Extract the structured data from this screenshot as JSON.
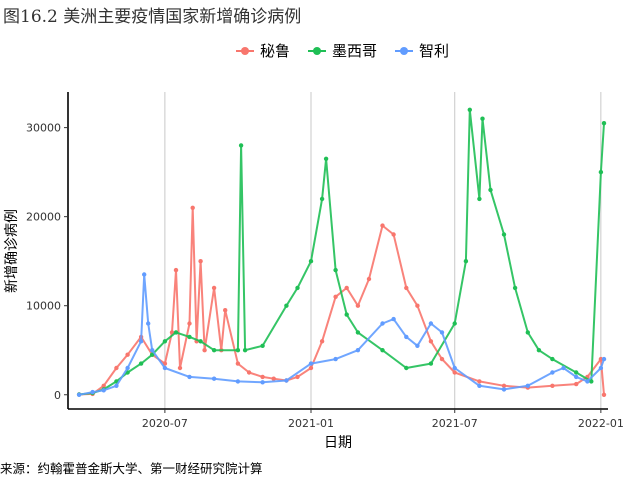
{
  "figure": {
    "caption": "图16.2 美洲主要疫情国家新增确诊病例",
    "source": "来源：约翰霍普金斯大学、第一财经研究院计算"
  },
  "chart_data": {
    "type": "line",
    "xlabel": "日期",
    "ylabel": "新增确诊病例",
    "x_ticks": [
      "2020-07",
      "2021-01",
      "2021-07",
      "2022-01"
    ],
    "y_ticks": [
      0,
      10000,
      20000,
      30000
    ],
    "xlim": [
      "2020-03-01",
      "2022-01-10"
    ],
    "ylim": [
      -1600,
      34000
    ],
    "grid": "vertical major",
    "legend_position": "top",
    "series": [
      {
        "name": "秘鲁",
        "color": "#F8766D",
        "points": [
          [
            "2020-03-15",
            30
          ],
          [
            "2020-04-01",
            100
          ],
          [
            "2020-04-15",
            1000
          ],
          [
            "2020-05-01",
            3000
          ],
          [
            "2020-05-15",
            4500
          ],
          [
            "2020-06-01",
            6500
          ],
          [
            "2020-06-15",
            4500
          ],
          [
            "2020-07-01",
            3500
          ],
          [
            "2020-07-10",
            7000
          ],
          [
            "2020-07-15",
            14000
          ],
          [
            "2020-07-20",
            3000
          ],
          [
            "2020-08-01",
            8000
          ],
          [
            "2020-08-05",
            21000
          ],
          [
            "2020-08-10",
            6000
          ],
          [
            "2020-08-15",
            15000
          ],
          [
            "2020-08-20",
            5000
          ],
          [
            "2020-09-01",
            12000
          ],
          [
            "2020-09-10",
            5000
          ],
          [
            "2020-09-15",
            9500
          ],
          [
            "2020-10-01",
            3500
          ],
          [
            "2020-10-15",
            2500
          ],
          [
            "2020-11-01",
            2000
          ],
          [
            "2020-11-15",
            1800
          ],
          [
            "2020-12-01",
            1600
          ],
          [
            "2020-12-15",
            2000
          ],
          [
            "2021-01-01",
            3000
          ],
          [
            "2021-01-15",
            6000
          ],
          [
            "2021-02-01",
            11000
          ],
          [
            "2021-02-15",
            12000
          ],
          [
            "2021-03-01",
            10000
          ],
          [
            "2021-03-15",
            13000
          ],
          [
            "2021-04-01",
            19000
          ],
          [
            "2021-04-15",
            18000
          ],
          [
            "2021-05-01",
            12000
          ],
          [
            "2021-05-15",
            10000
          ],
          [
            "2021-06-01",
            6000
          ],
          [
            "2021-06-15",
            4000
          ],
          [
            "2021-07-01",
            2500
          ],
          [
            "2021-08-01",
            1500
          ],
          [
            "2021-09-01",
            1000
          ],
          [
            "2021-10-01",
            800
          ],
          [
            "2021-11-01",
            1000
          ],
          [
            "2021-12-01",
            1200
          ],
          [
            "2021-12-15",
            2000
          ],
          [
            "2022-01-01",
            4000
          ],
          [
            "2022-01-05",
            0
          ]
        ]
      },
      {
        "name": "墨西哥",
        "color": "#1FBF55",
        "points": [
          [
            "2020-03-15",
            30
          ],
          [
            "2020-04-01",
            200
          ],
          [
            "2020-04-15",
            600
          ],
          [
            "2020-05-01",
            1500
          ],
          [
            "2020-05-15",
            2500
          ],
          [
            "2020-06-01",
            3500
          ],
          [
            "2020-06-15",
            4500
          ],
          [
            "2020-07-01",
            6000
          ],
          [
            "2020-07-15",
            7000
          ],
          [
            "2020-08-01",
            6500
          ],
          [
            "2020-08-15",
            6000
          ],
          [
            "2020-09-01",
            5000
          ],
          [
            "2020-10-01",
            5000
          ],
          [
            "2020-10-05",
            28000
          ],
          [
            "2020-10-10",
            5000
          ],
          [
            "2020-11-01",
            5500
          ],
          [
            "2020-12-01",
            10000
          ],
          [
            "2020-12-15",
            12000
          ],
          [
            "2021-01-01",
            15000
          ],
          [
            "2021-01-15",
            22000
          ],
          [
            "2021-01-20",
            26500
          ],
          [
            "2021-02-01",
            14000
          ],
          [
            "2021-02-15",
            9000
          ],
          [
            "2021-03-01",
            7000
          ],
          [
            "2021-04-01",
            5000
          ],
          [
            "2021-05-01",
            3000
          ],
          [
            "2021-06-01",
            3500
          ],
          [
            "2021-07-01",
            8000
          ],
          [
            "2021-07-15",
            15000
          ],
          [
            "2021-07-20",
            32000
          ],
          [
            "2021-08-01",
            22000
          ],
          [
            "2021-08-05",
            31000
          ],
          [
            "2021-08-15",
            23000
          ],
          [
            "2021-09-01",
            18000
          ],
          [
            "2021-09-15",
            12000
          ],
          [
            "2021-10-01",
            7000
          ],
          [
            "2021-10-15",
            5000
          ],
          [
            "2021-11-01",
            4000
          ],
          [
            "2021-12-01",
            2500
          ],
          [
            "2021-12-20",
            1500
          ],
          [
            "2022-01-01",
            25000
          ],
          [
            "2022-01-05",
            30500
          ]
        ]
      },
      {
        "name": "智利",
        "color": "#619CFF",
        "points": [
          [
            "2020-03-15",
            0
          ],
          [
            "2020-04-01",
            300
          ],
          [
            "2020-04-15",
            500
          ],
          [
            "2020-05-01",
            1000
          ],
          [
            "2020-05-15",
            3000
          ],
          [
            "2020-06-01",
            6000
          ],
          [
            "2020-06-05",
            13500
          ],
          [
            "2020-06-10",
            8000
          ],
          [
            "2020-06-15",
            5000
          ],
          [
            "2020-07-01",
            3000
          ],
          [
            "2020-08-01",
            2000
          ],
          [
            "2020-09-01",
            1800
          ],
          [
            "2020-10-01",
            1500
          ],
          [
            "2020-11-01",
            1400
          ],
          [
            "2020-12-01",
            1600
          ],
          [
            "2021-01-01",
            3500
          ],
          [
            "2021-02-01",
            4000
          ],
          [
            "2021-03-01",
            5000
          ],
          [
            "2021-04-01",
            8000
          ],
          [
            "2021-04-15",
            8500
          ],
          [
            "2021-05-01",
            6500
          ],
          [
            "2021-05-15",
            5500
          ],
          [
            "2021-06-01",
            8000
          ],
          [
            "2021-06-15",
            7000
          ],
          [
            "2021-07-01",
            3000
          ],
          [
            "2021-08-01",
            1000
          ],
          [
            "2021-09-01",
            600
          ],
          [
            "2021-10-01",
            1000
          ],
          [
            "2021-11-01",
            2500
          ],
          [
            "2021-11-15",
            3000
          ],
          [
            "2021-12-01",
            2000
          ],
          [
            "2021-12-15",
            1500
          ],
          [
            "2022-01-01",
            3000
          ],
          [
            "2022-01-05",
            4000
          ]
        ]
      }
    ]
  }
}
